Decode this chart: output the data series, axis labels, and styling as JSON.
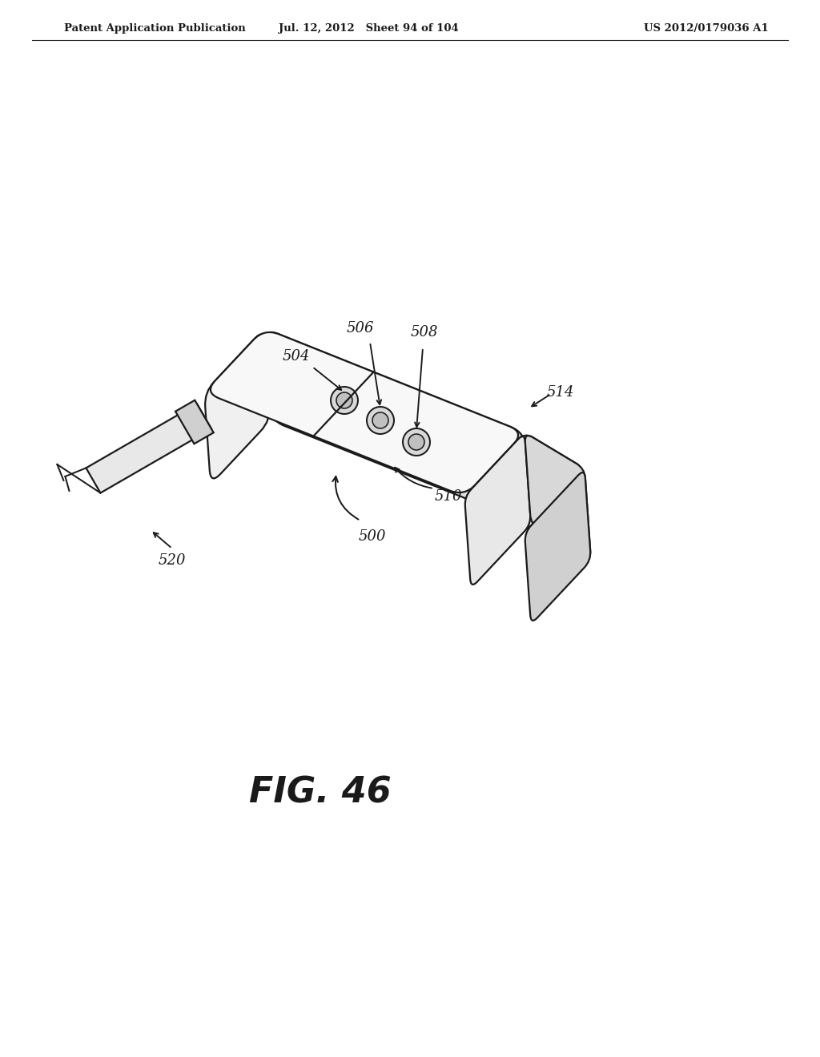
{
  "header_left": "Patent Application Publication",
  "header_mid": "Jul. 12, 2012   Sheet 94 of 104",
  "header_right": "US 2012/0179036 A1",
  "figure_label": "FIG. 46",
  "bg_color": "#ffffff",
  "line_color": "#1a1a1a",
  "line_width": 1.6,
  "label_fontsize": 13,
  "header_fontsize": 9.5
}
